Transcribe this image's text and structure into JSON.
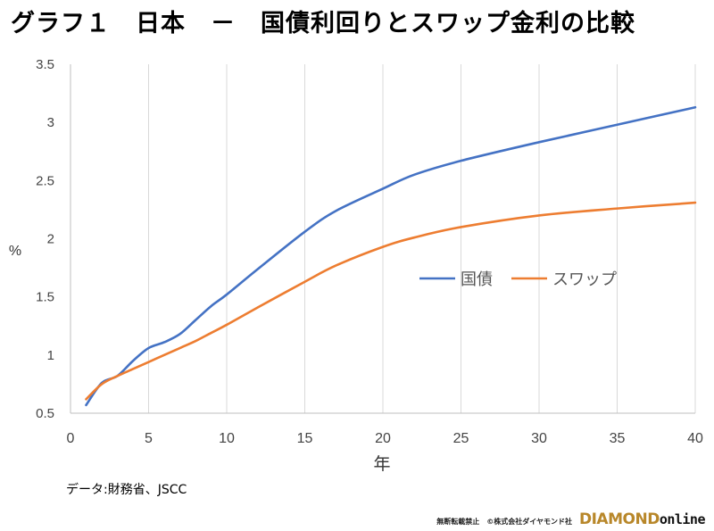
{
  "chart_data": {
    "type": "line",
    "title": "グラフ１　日本　－　国債利回りとスワップ金利の比較",
    "xlabel": "年",
    "ylabel": "%",
    "xlim": [
      0,
      40
    ],
    "ylim": [
      0.5,
      3.5
    ],
    "xticks": [
      "0",
      "5",
      "10",
      "15",
      "20",
      "25",
      "30",
      "35",
      "40"
    ],
    "yticks": [
      "0.5",
      "1",
      "1.5",
      "2",
      "2.5",
      "3",
      "3.5"
    ],
    "grid": "vertical",
    "legend_position": "center-right",
    "series": [
      {
        "name": "国債",
        "color": "#4472c4",
        "x": [
          1,
          2,
          3,
          4,
          5,
          6,
          7,
          8,
          9,
          10,
          12,
          15,
          17,
          20,
          22,
          25,
          30,
          35,
          40
        ],
        "values": [
          0.57,
          0.76,
          0.82,
          0.95,
          1.06,
          1.11,
          1.18,
          1.3,
          1.42,
          1.52,
          1.74,
          2.06,
          2.24,
          2.43,
          2.55,
          2.67,
          2.83,
          2.98,
          3.13
        ]
      },
      {
        "name": "スワップ",
        "color": "#ed7d31",
        "x": [
          1,
          2,
          3,
          4,
          5,
          6,
          7,
          8,
          9,
          10,
          12,
          15,
          17,
          20,
          22,
          25,
          30,
          35,
          40
        ],
        "values": [
          0.62,
          0.75,
          0.82,
          0.88,
          0.94,
          1.0,
          1.06,
          1.12,
          1.19,
          1.26,
          1.41,
          1.63,
          1.77,
          1.93,
          2.01,
          2.1,
          2.2,
          2.26,
          2.31
        ]
      }
    ]
  },
  "source": "データ:財務省、JSCC",
  "footer": {
    "copyright": "無断転載禁止　©株式会社ダイヤモンド社",
    "brand_main": "DIAMOND",
    "brand_sub": "online"
  }
}
